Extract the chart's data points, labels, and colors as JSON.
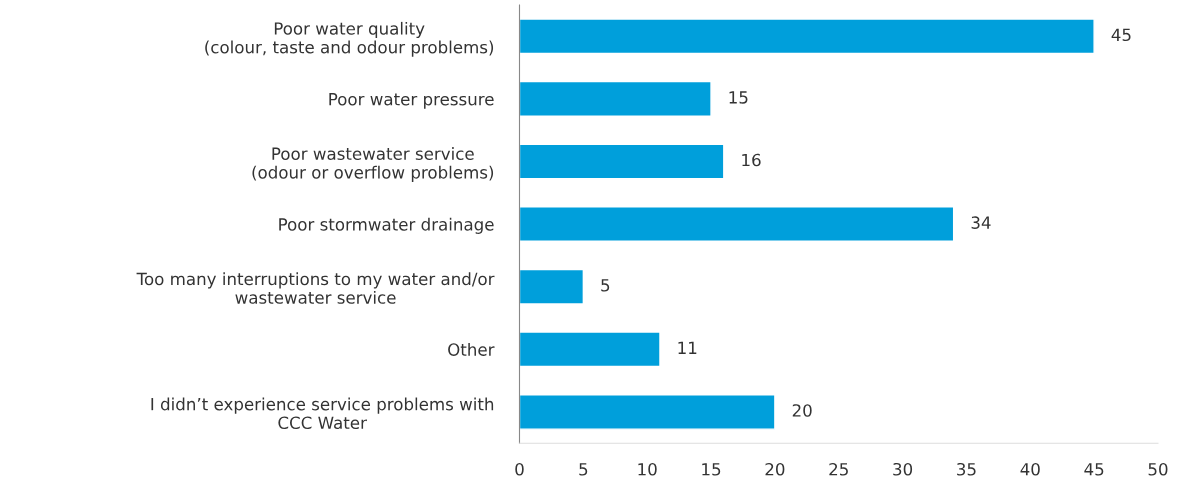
{
  "chart_data": {
    "type": "bar",
    "orientation": "horizontal",
    "categories": [
      "Poor water quality\n(colour, taste and odour problems)",
      "Poor water pressure",
      "Poor wastewater service\n(odour or overflow problems)",
      "Poor stormwater drainage",
      "Too many interruptions to my water and/or\nwastewater service",
      "Other",
      "I didn’t experience service problems with\nCCC Water"
    ],
    "values": [
      45,
      15,
      16,
      34,
      5,
      11,
      20
    ],
    "color": "#009fdb",
    "xlim": [
      0,
      50
    ],
    "xticks": [
      0,
      5,
      10,
      15,
      20,
      25,
      30,
      35,
      40,
      45,
      50
    ],
    "data_labels": true,
    "grid": false,
    "legend": false
  }
}
